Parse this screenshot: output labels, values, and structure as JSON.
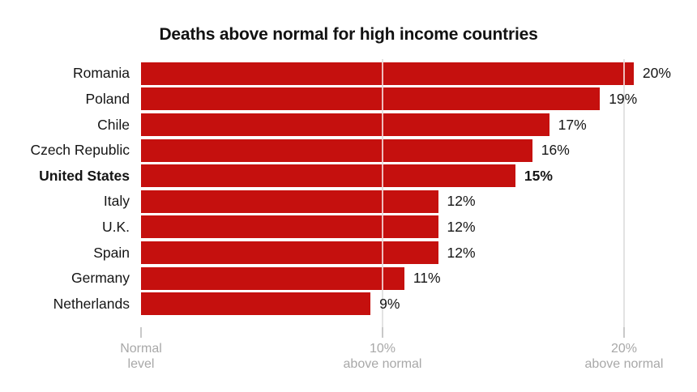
{
  "colors": {
    "bar": "#c5100e",
    "title_text": "#121212",
    "label_text": "#151515",
    "axis_text": "#a8a8a8",
    "gridline": "#e3e3e3",
    "tick": "#c9c9c9",
    "background": "#ffffff"
  },
  "chart_data": {
    "type": "bar",
    "orientation": "horizontal",
    "title": "Deaths above normal for high income countries",
    "categories": [
      "Romania",
      "Poland",
      "Chile",
      "Czech Republic",
      "United States",
      "Italy",
      "U.K.",
      "Spain",
      "Germany",
      "Netherlands"
    ],
    "values": [
      20,
      19,
      17,
      16,
      15,
      12,
      12,
      12,
      11,
      9
    ],
    "value_labels": [
      "20%",
      "19%",
      "17%",
      "16%",
      "15%",
      "12%",
      "12%",
      "12%",
      "11%",
      "9%"
    ],
    "bar_lengths_pct": [
      20.4,
      19.0,
      16.9,
      16.2,
      15.5,
      12.3,
      12.3,
      12.3,
      10.9,
      9.5
    ],
    "emphasized_category": "United States",
    "xlim": [
      0,
      21.5
    ],
    "gridlines_pct": [
      10,
      20
    ],
    "x_axis": {
      "ticks": [
        {
          "pct": 0,
          "lines": [
            "Normal",
            "level"
          ]
        },
        {
          "pct": 10,
          "lines": [
            "10%",
            "above normal"
          ]
        },
        {
          "pct": 20,
          "lines": [
            "20%",
            "above normal"
          ]
        }
      ]
    },
    "grid": "vertical-only",
    "legend_position": "none"
  }
}
